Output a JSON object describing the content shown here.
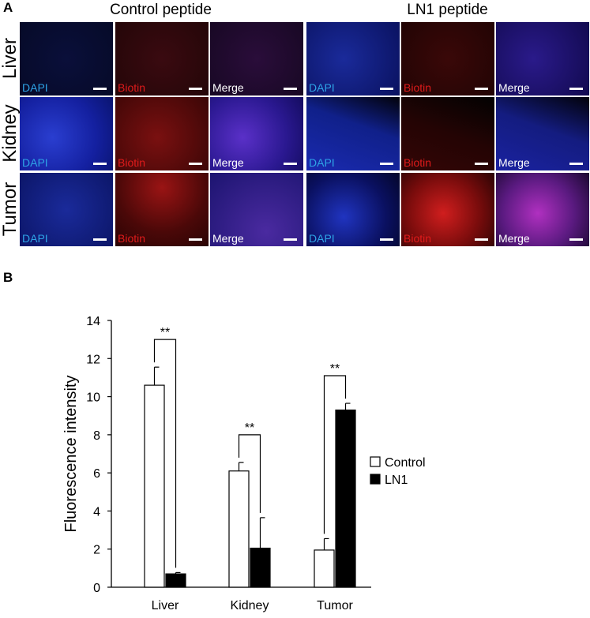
{
  "figure": {
    "panel_a_letter": "A",
    "panel_b_letter": "B",
    "groups": [
      {
        "title": "Control peptide"
      },
      {
        "title": "LN1 peptide"
      }
    ],
    "rows": [
      {
        "label": "Liver"
      },
      {
        "label": "Kidney"
      },
      {
        "label": "Tumor"
      }
    ],
    "channels": [
      {
        "label": "DAPI"
      },
      {
        "label": "Biotin"
      },
      {
        "label": "Merge"
      }
    ]
  },
  "colors": {
    "dapi_text": "#2ea3e6",
    "biotin_text": "#e01b1b",
    "merge_text": "#ffffff",
    "control_bar": "#ffffff",
    "ln1_bar": "#000000"
  },
  "chart_data": {
    "type": "bar",
    "categories": [
      "Liver",
      "Kidney",
      "Tumor"
    ],
    "series": [
      {
        "name": "Control",
        "values": [
          10.6,
          6.1,
          1.95
        ],
        "errors": [
          0.95,
          0.45,
          0.6
        ]
      },
      {
        "name": "LN1",
        "values": [
          0.7,
          2.05,
          9.3
        ],
        "errors": [
          0.07,
          1.6,
          0.35
        ]
      }
    ],
    "ylabel": "Fluorescence intensity",
    "xlabel": "",
    "ylim": [
      0,
      14
    ],
    "yticks": [
      "0",
      "2",
      "4",
      "6",
      "8",
      "10",
      "12",
      "14"
    ],
    "significance": [
      "**",
      "**",
      "**"
    ],
    "legend_position": "right",
    "grid": false
  }
}
